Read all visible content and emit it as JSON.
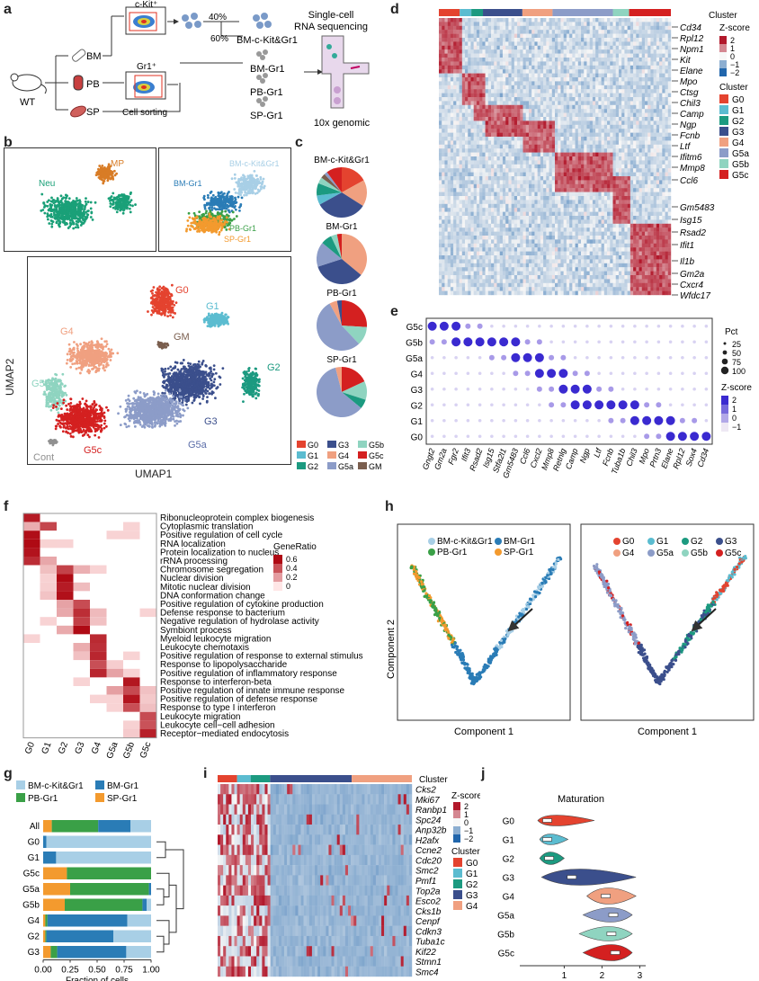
{
  "panels": {
    "a": "a",
    "b": "b",
    "c": "c",
    "d": "d",
    "e": "e",
    "f": "f",
    "g": "g",
    "h": "h",
    "i": "i",
    "j": "j"
  },
  "colors": {
    "G0": "#e4432f",
    "G1": "#5bbcd0",
    "G2": "#1c9a80",
    "G3": "#3b4f8c",
    "G4": "#f0a080",
    "G5a": "#8c9cc8",
    "G5b": "#8fd4c0",
    "G5c": "#d42020",
    "GM": "#7a5e4e",
    "BM-c-Kit&Gr1": "#a8cfe6",
    "BM-Gr1": "#2a7cb6",
    "PB-Gr1": "#3aa047",
    "SP-Gr1": "#f39a2e",
    "Neu": "#1aa078",
    "MP": "#d87c26",
    "Cont": "#909090"
  },
  "a": {
    "wt": "WT",
    "tissues": [
      "BM",
      "PB",
      "SP"
    ],
    "gate1": "c-Kit⁺",
    "gate2": "Gr1⁺",
    "sorting": "Cell sorting",
    "pct40": "40%",
    "pct60": "60%",
    "samples": [
      "BM-c-Kit&Gr1",
      "BM-Gr1",
      "PB-Gr1",
      "SP-Gr1"
    ],
    "seq_line1": "Single-cell",
    "seq_line2": "RNA sequencing",
    "platform": "10x genomic"
  },
  "b": {
    "top_left_labels": [
      "Neu",
      "MP"
    ],
    "top_right_labels": [
      "BM-c-Kit&Gr1",
      "BM-Gr1",
      "PB-Gr1",
      "SP-Gr1"
    ],
    "cluster_labels": [
      "G0",
      "G1",
      "G2",
      "G3",
      "G4",
      "G5a",
      "G5b",
      "G5c",
      "GM",
      "Cont"
    ],
    "xlabel": "UMAP1",
    "ylabel": "UMAP2"
  },
  "c": {
    "pies": [
      {
        "title": "BM-c-Kit&Gr1",
        "values": {
          "G0": 0.17,
          "G4": 0.17,
          "G3": 0.33,
          "G1": 0.06,
          "G2": 0.08,
          "G5b": 0.04,
          "GM": 0.03,
          "G5a": 0.02,
          "G5c": 0.1
        }
      },
      {
        "title": "BM-Gr1",
        "values": {
          "G4": 0.36,
          "G3": 0.34,
          "G5a": 0.16,
          "G2": 0.07,
          "G5b": 0.04,
          "G5c": 0.03
        }
      },
      {
        "title": "PB-Gr1",
        "values": {
          "G5c": 0.26,
          "G5b": 0.12,
          "G5a": 0.54,
          "G4": 0.05,
          "G3": 0.03
        }
      },
      {
        "title": "SP-Gr1",
        "values": {
          "G5c": 0.18,
          "G5b": 0.12,
          "G2": 0.06,
          "G5a": 0.6,
          "G4": 0.04
        }
      }
    ],
    "legend": [
      "G0",
      "G3",
      "G5b",
      "G1",
      "G4",
      "G5c",
      "G2",
      "G5a",
      "GM"
    ]
  },
  "d": {
    "column_clusters": [
      {
        "name": "G0",
        "frac": 0.09
      },
      {
        "name": "G1",
        "frac": 0.05
      },
      {
        "name": "G2",
        "frac": 0.05
      },
      {
        "name": "G3",
        "frac": 0.17
      },
      {
        "name": "G4",
        "frac": 0.13
      },
      {
        "name": "G5a",
        "frac": 0.26
      },
      {
        "name": "G5b",
        "frac": 0.07
      },
      {
        "name": "G5c",
        "frac": 0.18
      }
    ],
    "genes": [
      "Cd34",
      "Rpl12",
      "Npm1",
      "Kit",
      "Elane",
      "Mpo",
      "Ctsg",
      "Chil3",
      "Camp",
      "Ngp",
      "Fcnb",
      "Ltf",
      "Ifitm6",
      "Mmp8",
      "Ccl6",
      "Gm5483",
      "Isg15",
      "Rsad2",
      "Ifit1",
      "Il1b",
      "Gm2a",
      "Cxcr4",
      "Wfdc17"
    ],
    "legend_title": "Cluster",
    "zscore_title": "Z-score",
    "zscore_ticks": [
      "2",
      "1",
      "0",
      "−1",
      "−2"
    ],
    "cluster_legend_title": "Cluster",
    "cluster_legend": [
      "G0",
      "G1",
      "G2",
      "G3",
      "G4",
      "G5a",
      "G5b",
      "G5c"
    ]
  },
  "e": {
    "rows": [
      "G5c",
      "G5b",
      "G5a",
      "G4",
      "G3",
      "G2",
      "G1",
      "G0"
    ],
    "genes": [
      "Gngt2",
      "Gm2a",
      "Fgr2",
      "Ifit3",
      "Rsad2",
      "Isg15",
      "Stfa2l1",
      "Gm5483",
      "Ccl6",
      "Cxcl2",
      "Mmp8",
      "Retnlg",
      "Camp",
      "Ngp",
      "Ltf",
      "Fcnb",
      "Tuba1b",
      "Chil3",
      "Mpo",
      "Prtn3",
      "Elane",
      "Rpl12",
      "Sox4",
      "Cd34"
    ],
    "pct_title": "Pct",
    "pct_values": [
      "25",
      "50",
      "75",
      "100"
    ],
    "z_title": "Z-score",
    "z_ticks": [
      "2",
      "1",
      "0",
      "−1"
    ]
  },
  "f": {
    "terms": [
      "Ribonucleoprotein complex biogenesis",
      "Cytoplasmic translation",
      "Positive regulation of cell cycle",
      "RNA localization",
      "Protein localization to nucleus",
      "rRNA processing",
      "Chromosome segregation",
      "Nuclear division",
      "Mitotic nuclear division",
      "DNA conformation change",
      "Positive regulation of cytokine production",
      "Defense response to bacterium",
      "Negative regulation of hydrolase activity",
      "Symbiont process",
      "Myeloid leukocyte migration",
      "Leukocyte chemotaxis",
      "Positive regulation of response to external stimulus",
      "Response to lipopolysaccharide",
      "Positive regulation of inflammatory response",
      "Response to interferon-beta",
      "Positive regulation of innate immune response",
      "Positive regulation of defense response",
      "Response to type I interferon",
      "Leukocyte migration",
      "Leukocyte cell−cell adhesion",
      "Receptor−mediated endocytosis"
    ],
    "clusters": [
      "G0",
      "G1",
      "G2",
      "G3",
      "G4",
      "G5a",
      "G5b",
      "G5c"
    ],
    "legend_title": "GeneRatio",
    "legend_ticks": [
      "0.6",
      "0.4",
      "0.2",
      "0"
    ]
  },
  "g": {
    "legend": [
      "BM-c-Kit&Gr1",
      "BM-Gr1",
      "PB-Gr1",
      "SP-Gr1"
    ],
    "xlabel": "Fraction of cells",
    "xticks": [
      "0.00",
      "0.25",
      "0.50",
      "0.75",
      "1.00"
    ],
    "rows": [
      {
        "name": "All",
        "values": [
          0.08,
          0.43,
          0.3,
          0.19
        ]
      },
      {
        "name": "G0",
        "values": [
          0.0,
          0.0,
          0.03,
          0.97
        ]
      },
      {
        "name": "G1",
        "values": [
          0.0,
          0.0,
          0.12,
          0.88
        ]
      },
      {
        "name": "G5c",
        "values": [
          0.22,
          0.78,
          0.0,
          0.0
        ]
      },
      {
        "name": "G5a",
        "values": [
          0.25,
          0.73,
          0.02,
          0.0
        ]
      },
      {
        "name": "G5b",
        "values": [
          0.2,
          0.72,
          0.04,
          0.04
        ]
      },
      {
        "name": "G4",
        "values": [
          0.02,
          0.02,
          0.74,
          0.22
        ]
      },
      {
        "name": "G2",
        "values": [
          0.02,
          0.01,
          0.62,
          0.35
        ]
      },
      {
        "name": "G3",
        "values": [
          0.07,
          0.06,
          0.64,
          0.23
        ]
      }
    ]
  },
  "h": {
    "left_legend": [
      "BM-c-Kit&Gr1",
      "BM-Gr1",
      "PB-Gr1",
      "SP-Gr1"
    ],
    "right_legend": [
      "G0",
      "G1",
      "G2",
      "G3",
      "G4",
      "G5a",
      "G5b",
      "G5c"
    ],
    "xlabel": "Component 1",
    "ylabel": "Component 2"
  },
  "i": {
    "column_clusters": [
      {
        "name": "G0",
        "frac": 0.1
      },
      {
        "name": "G1",
        "frac": 0.07
      },
      {
        "name": "G2",
        "frac": 0.1
      },
      {
        "name": "G3",
        "frac": 0.42
      },
      {
        "name": "G4",
        "frac": 0.31
      }
    ],
    "genes": [
      "Cks2",
      "Mki67",
      "Ranbp1",
      "Spc24",
      "Anp32b",
      "H2afx",
      "Ccne2",
      "Cdc20",
      "Smc2",
      "Pmf1",
      "Top2a",
      "Esco2",
      "Cks1b",
      "Cenpf",
      "Cdkn3",
      "Tuba1c",
      "Kif22",
      "Stmn1",
      "Smc4"
    ],
    "legend_title": "Cluster",
    "zscore_title": "Z-score",
    "zscore_ticks": [
      "2",
      "1",
      "0",
      "−1",
      "−2"
    ],
    "cluster_legend_title": "Cluster",
    "cluster_legend": [
      "G0",
      "G1",
      "G2",
      "G3",
      "G4"
    ]
  },
  "j": {
    "title": "Maturation",
    "xticks": [
      "1",
      "2",
      "3"
    ],
    "violins": [
      {
        "name": "G0",
        "center": 0.55
      },
      {
        "name": "G1",
        "center": 0.55
      },
      {
        "name": "G2",
        "center": 0.6
      },
      {
        "name": "G3",
        "center": 1.2
      },
      {
        "name": "G4",
        "center": 2.1
      },
      {
        "name": "G5a",
        "center": 2.3
      },
      {
        "name": "G5b",
        "center": 2.25
      },
      {
        "name": "G5c",
        "center": 2.35
      }
    ]
  }
}
